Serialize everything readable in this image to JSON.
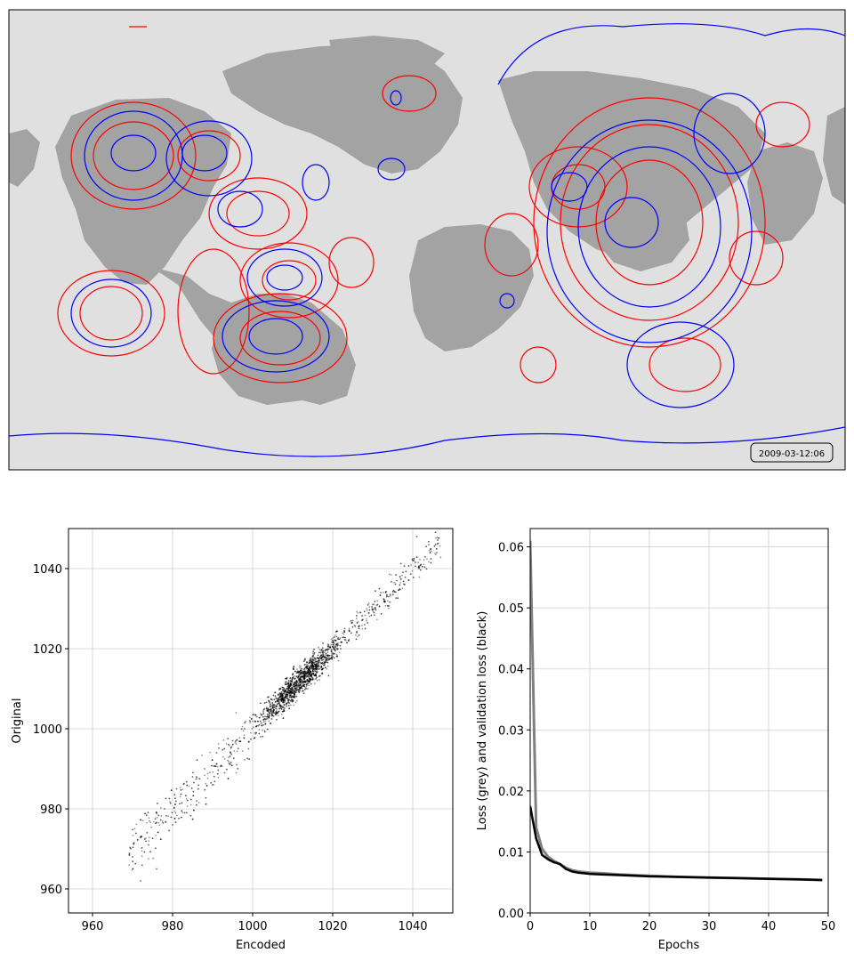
{
  "map_panel": {
    "timestamp": "2009-03-12:06",
    "ocean_color": "#e0e0e0",
    "land_color": "#a0a0a0",
    "contour_colors": [
      "#ff0000",
      "#0000ff"
    ]
  },
  "chart_data": [
    {
      "type": "scatter",
      "xlabel": "Encoded",
      "ylabel": "Original",
      "xlim": [
        954,
        1050
      ],
      "ylim": [
        954,
        1050
      ],
      "xticks": [
        960,
        980,
        1000,
        1020,
        1040
      ],
      "yticks": [
        960,
        980,
        1000,
        1020,
        1040
      ],
      "grid": true,
      "point_color": "#000000",
      "points_summary": {
        "relation": "approximately y = x",
        "x_range": [
          969,
          1047
        ],
        "dense_center": [
          1012,
          1012
        ]
      },
      "points": [
        [
          970,
          968
        ],
        [
          972,
          962
        ],
        [
          974,
          971
        ],
        [
          976,
          965
        ],
        [
          978,
          980
        ],
        [
          980,
          976
        ],
        [
          981,
          985
        ],
        [
          983,
          979
        ],
        [
          985,
          988
        ],
        [
          986,
          982
        ],
        [
          988,
          990
        ],
        [
          990,
          986
        ],
        [
          991,
          994
        ],
        [
          993,
          989
        ],
        [
          995,
          997
        ],
        [
          996,
          991
        ],
        [
          998,
          1000
        ],
        [
          999,
          995
        ],
        [
          1001,
          1003
        ],
        [
          1002,
          998
        ],
        [
          1003,
          1005
        ],
        [
          1004,
          1008
        ],
        [
          1005,
          1004
        ],
        [
          1006,
          1007
        ],
        [
          1007,
          1010
        ],
        [
          1008,
          1006
        ],
        [
          1009,
          1012
        ],
        [
          1010,
          1009
        ],
        [
          1011,
          1013
        ],
        [
          1012,
          1011
        ],
        [
          1013,
          1015
        ],
        [
          1014,
          1012
        ],
        [
          1015,
          1017
        ],
        [
          1016,
          1014
        ],
        [
          1017,
          1019
        ],
        [
          1018,
          1016
        ],
        [
          1019,
          1021
        ],
        [
          1020,
          1018
        ],
        [
          1021,
          1023
        ],
        [
          1022,
          1020
        ],
        [
          1023,
          1025
        ],
        [
          1024,
          1022
        ],
        [
          1025,
          1027
        ],
        [
          1026,
          1024
        ],
        [
          1027,
          1029
        ],
        [
          1028,
          1026
        ],
        [
          1030,
          1031
        ],
        [
          1032,
          1034
        ],
        [
          1034,
          1033
        ],
        [
          1036,
          1037
        ],
        [
          1038,
          1036
        ],
        [
          1040,
          1042
        ],
        [
          1042,
          1041
        ],
        [
          1044,
          1046
        ],
        [
          1046,
          1044
        ],
        [
          1041,
          1048
        ]
      ]
    },
    {
      "type": "line",
      "xlabel": "Epochs",
      "ylabel": "Loss (grey) and validation loss (black)",
      "xlim": [
        0,
        50
      ],
      "ylim": [
        0,
        0.063
      ],
      "xticks": [
        0,
        10,
        20,
        30,
        40,
        50
      ],
      "yticks": [
        "0.00",
        "0.01",
        "0.02",
        "0.03",
        "0.04",
        "0.05",
        "0.06"
      ],
      "grid": true,
      "series": [
        {
          "color": "#808080",
          "x": [
            0,
            1,
            2,
            3,
            4,
            5,
            6,
            7,
            8,
            9,
            10,
            12,
            15,
            20,
            25,
            30,
            35,
            40,
            45,
            49
          ],
          "y": [
            0.061,
            0.014,
            0.0105,
            0.0092,
            0.0085,
            0.008,
            0.0074,
            0.007,
            0.0068,
            0.0067,
            0.0066,
            0.0065,
            0.0063,
            0.0061,
            0.0059,
            0.0058,
            0.0057,
            0.0056,
            0.0055,
            0.0054
          ]
        },
        {
          "color": "#000000",
          "x": [
            0,
            1,
            2,
            3,
            4,
            5,
            6,
            7,
            8,
            9,
            10,
            12,
            15,
            20,
            25,
            30,
            35,
            40,
            45,
            49
          ],
          "y": [
            0.0175,
            0.0122,
            0.0095,
            0.0088,
            0.0083,
            0.008,
            0.0072,
            0.0068,
            0.0066,
            0.0065,
            0.0064,
            0.0063,
            0.0062,
            0.006,
            0.0059,
            0.0058,
            0.0057,
            0.0056,
            0.0055,
            0.0054
          ]
        }
      ]
    }
  ]
}
